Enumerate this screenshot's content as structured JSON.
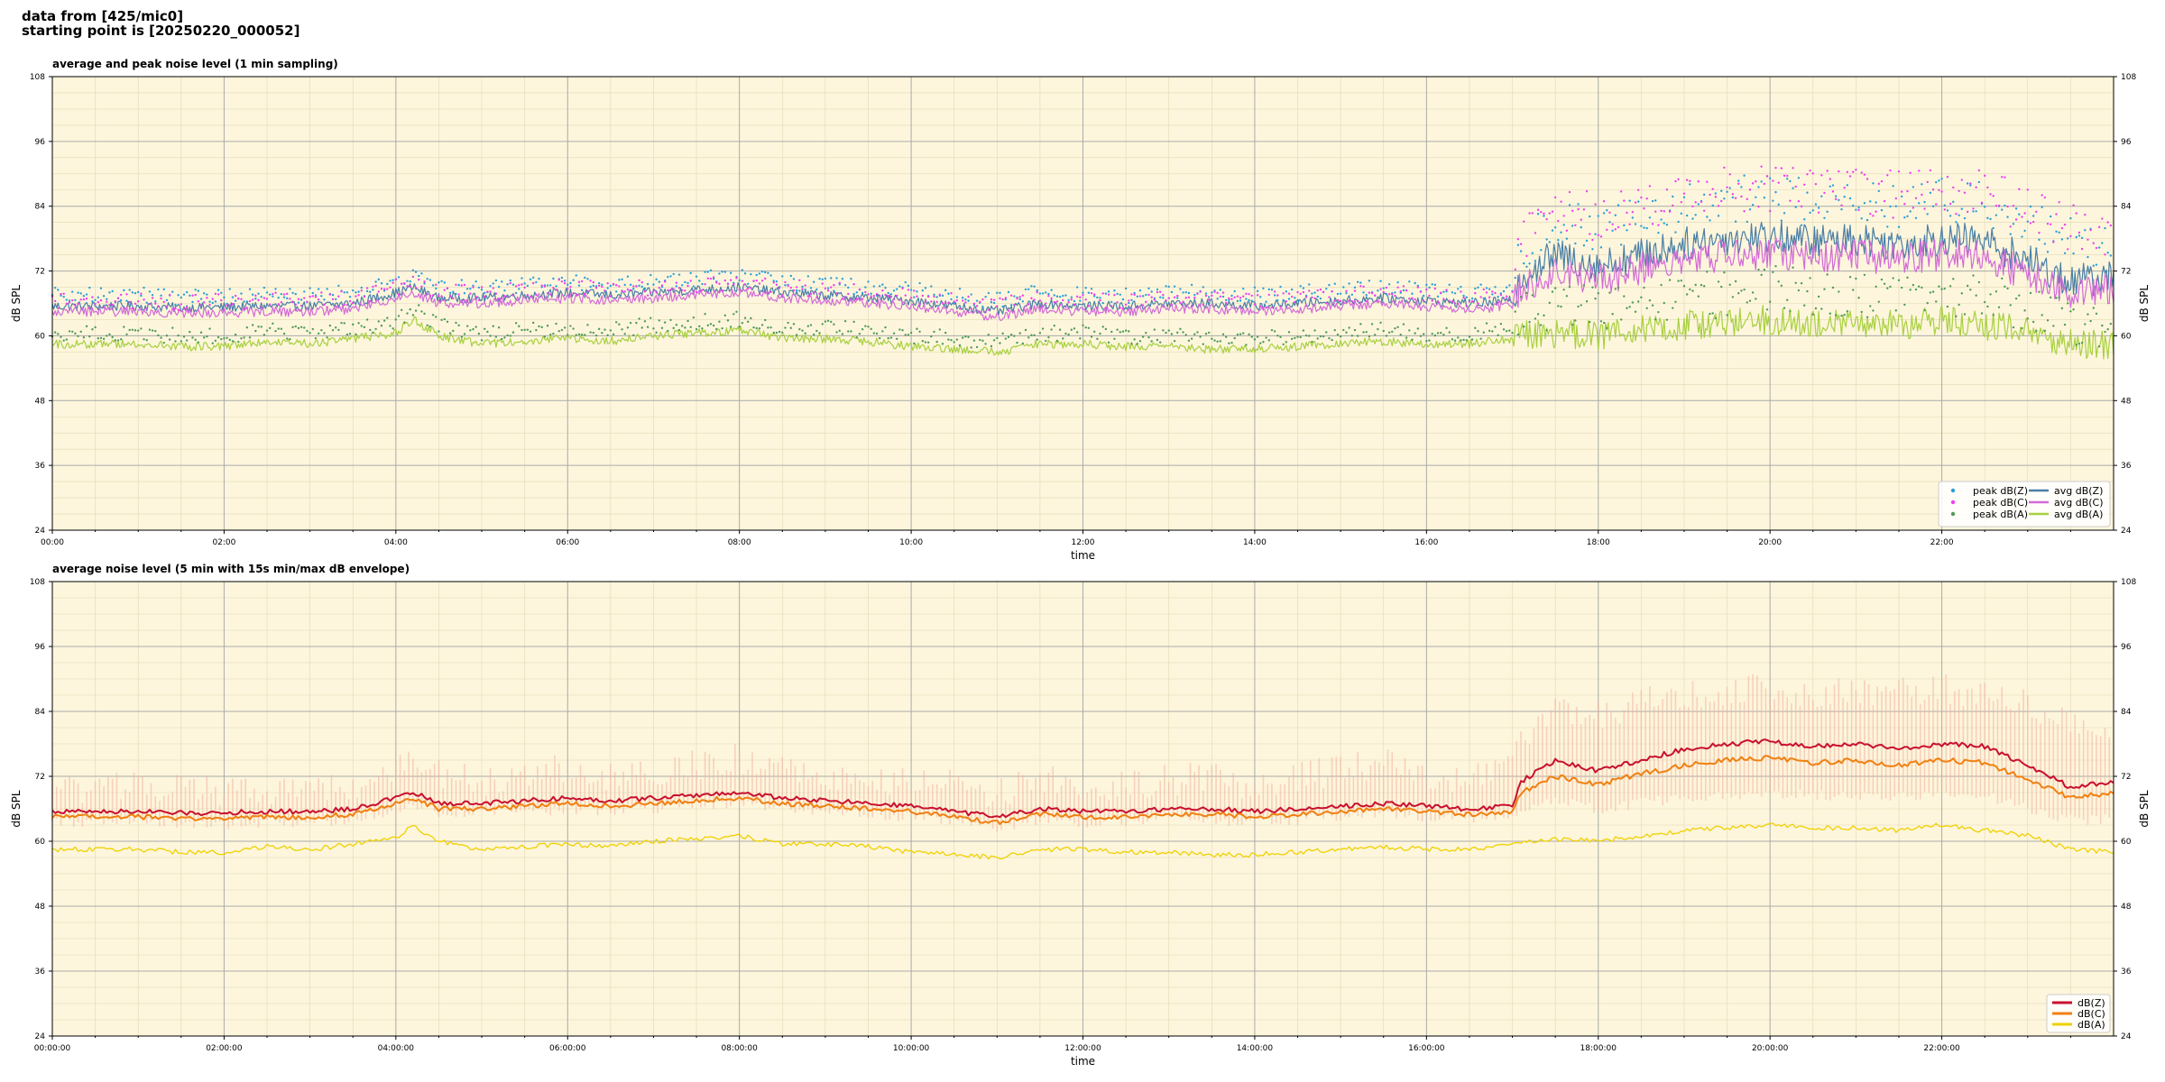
{
  "header": {
    "line1": "data from [425/mic0]",
    "line2": "starting point is [20250220_000052]"
  },
  "colors": {
    "background": "#fdf6dc",
    "grid_major": "#aaaaaa",
    "grid_minor": "#e2d8b4",
    "peak_z": "#2a9fd8",
    "peak_c": "#ee40ee",
    "peak_a": "#4f9a5a",
    "avg_z": "#4a7ea6",
    "avg_c": "#d36ad8",
    "avg_a": "#a8d040",
    "z": "#c8102e",
    "c": "#f08010",
    "a": "#f0d000",
    "envelope": "#f3b0a0"
  },
  "chart_data": [
    {
      "type": "line",
      "title": "average and peak noise level (1 min sampling)",
      "xlabel": "time",
      "ylabel": "dB SPL",
      "xlim": [
        0,
        24
      ],
      "ylim": [
        24,
        108
      ],
      "y_ticks": [
        24,
        36,
        48,
        60,
        72,
        84,
        96,
        108
      ],
      "x_tick_labels": [
        "00:00",
        "02:00",
        "04:00",
        "06:00",
        "08:00",
        "10:00",
        "12:00",
        "14:00",
        "16:00",
        "18:00",
        "20:00",
        "22:00"
      ],
      "grid": true,
      "legend_position": "bottom-right",
      "legend": [
        "peak dB(Z)",
        "peak dB(C)",
        "peak dB(A)",
        "avg dB(Z)",
        "avg dB(C)",
        "avg dB(A)"
      ],
      "x_hours": [
        0,
        0.5,
        1,
        1.5,
        2,
        2.5,
        3,
        3.5,
        4,
        4.2,
        4.5,
        5,
        5.5,
        6,
        6.5,
        7,
        7.5,
        8,
        8.5,
        9,
        9.5,
        10,
        10.5,
        11,
        11.5,
        12,
        12.5,
        13,
        13.5,
        14,
        14.5,
        15,
        15.5,
        16,
        16.5,
        17,
        17.1,
        17.5,
        18,
        18.5,
        19,
        19.5,
        20,
        20.5,
        21,
        21.5,
        22,
        22.5,
        23,
        23.5,
        24
      ],
      "series": [
        {
          "name": "avg dB(Z)",
          "values": [
            65.5,
            65.5,
            65.5,
            65.2,
            65.3,
            65.5,
            65.5,
            66,
            68,
            69,
            67,
            67,
            67.5,
            68,
            67.5,
            68,
            68.5,
            69,
            68,
            67.5,
            67,
            66.5,
            65.5,
            64.5,
            66,
            65.5,
            65.5,
            66,
            66,
            65.5,
            66,
            66.5,
            67,
            66.5,
            66,
            66.5,
            71,
            75,
            73,
            75,
            77,
            78,
            78.5,
            77.5,
            78,
            77,
            78,
            77.5,
            74,
            70,
            71
          ]
        },
        {
          "name": "avg dB(C)",
          "values": [
            64.5,
            64.5,
            64.5,
            64.2,
            64.3,
            64.5,
            64.5,
            65,
            67,
            68,
            66,
            66,
            66.5,
            67,
            66.5,
            67,
            67.5,
            68,
            67,
            66.5,
            66,
            65.5,
            64.5,
            63.5,
            65,
            64.5,
            64.5,
            65,
            65,
            64.5,
            65,
            65.5,
            66,
            65.5,
            65,
            65.5,
            69,
            72,
            70.5,
            72.5,
            74,
            75,
            75.5,
            74.5,
            75,
            74,
            75,
            74.5,
            71.5,
            68,
            69
          ]
        },
        {
          "name": "avg dB(A)",
          "values": [
            58.5,
            58.5,
            58.5,
            58,
            58,
            59,
            58.5,
            59.5,
            60.5,
            63,
            60,
            58.5,
            59,
            59.5,
            59,
            60,
            60.5,
            61,
            59.5,
            59.5,
            59,
            58,
            57.5,
            57,
            58.5,
            58.5,
            58,
            58,
            57.5,
            57.5,
            58,
            58.5,
            59,
            58.5,
            58.5,
            59.5,
            60,
            60.5,
            60,
            61,
            62,
            62.5,
            63,
            62.5,
            62.5,
            62,
            63,
            62,
            61,
            58.5,
            58
          ]
        },
        {
          "name": "peak dB(Z)",
          "values": [
            67.5,
            67.5,
            67.5,
            67.2,
            67.3,
            67.5,
            67.5,
            68,
            70,
            71,
            69,
            69,
            69.5,
            70,
            69.5,
            70,
            70.5,
            71,
            70,
            69.5,
            69,
            68.5,
            67.5,
            66.5,
            68,
            67.5,
            67.5,
            68,
            68,
            67.5,
            68,
            68.5,
            69,
            68.5,
            68,
            68.5,
            76,
            81,
            80,
            82,
            84,
            85,
            85.5,
            84.5,
            85,
            84,
            85,
            84.5,
            81,
            78,
            77
          ]
        },
        {
          "name": "peak dB(C)",
          "values": [
            66.5,
            66.5,
            66.5,
            66.2,
            66.3,
            66.5,
            66.5,
            67,
            69,
            70,
            68,
            68,
            68.5,
            69,
            68.5,
            69,
            69.5,
            70,
            69,
            68.5,
            68,
            67.5,
            66.5,
            65.5,
            67,
            66.5,
            66.5,
            67,
            67,
            66.5,
            67,
            67.5,
            68,
            67.5,
            67,
            67.5,
            78,
            83,
            82,
            84,
            86,
            87,
            87.5,
            86.5,
            87,
            86,
            87,
            86.5,
            83,
            80,
            79
          ]
        },
        {
          "name": "peak dB(A)",
          "values": [
            60.5,
            60.5,
            60.5,
            60,
            60,
            61,
            60.5,
            61.5,
            62.5,
            65,
            62,
            60.5,
            61,
            61.5,
            61,
            62,
            62.5,
            63,
            61.5,
            61.5,
            61,
            60,
            59.5,
            59,
            60.5,
            60.5,
            60,
            60,
            59.5,
            59.5,
            60,
            60.5,
            61,
            60.5,
            60.5,
            61.5,
            64,
            66,
            65,
            66,
            67,
            68,
            69,
            68,
            68,
            67,
            68,
            67,
            65,
            62,
            61
          ]
        }
      ]
    },
    {
      "type": "area",
      "title": "average noise level (5 min with 15s min/max dB envelope)",
      "xlabel": "time",
      "ylabel": "dB SPL",
      "xlim": [
        0,
        24
      ],
      "ylim": [
        24,
        108
      ],
      "y_ticks": [
        24,
        36,
        48,
        60,
        72,
        84,
        96,
        108
      ],
      "x_tick_labels": [
        "00:00:00",
        "02:00:00",
        "04:00:00",
        "06:00:00",
        "08:00:00",
        "10:00:00",
        "12:00:00",
        "14:00:00",
        "16:00:00",
        "18:00:00",
        "20:00:00",
        "22:00:00"
      ],
      "grid": true,
      "legend_position": "bottom-right",
      "legend": [
        "dB(Z)",
        "dB(C)",
        "dB(A)"
      ],
      "x_hours": [
        0,
        0.5,
        1,
        1.5,
        2,
        2.5,
        3,
        3.5,
        4,
        4.2,
        4.5,
        5,
        5.5,
        6,
        6.5,
        7,
        7.5,
        8,
        8.5,
        9,
        9.5,
        10,
        10.5,
        11,
        11.5,
        12,
        12.5,
        13,
        13.5,
        14,
        14.5,
        15,
        15.5,
        16,
        16.5,
        17,
        17.1,
        17.5,
        18,
        18.5,
        19,
        19.5,
        20,
        20.5,
        21,
        21.5,
        22,
        22.5,
        23,
        23.5,
        24
      ],
      "series": [
        {
          "name": "dB(Z)",
          "values": [
            65.5,
            65.5,
            65.5,
            65.2,
            65.3,
            65.5,
            65.5,
            66,
            68,
            69,
            67,
            67,
            67.5,
            68,
            67.5,
            68,
            68.5,
            69,
            68,
            67.5,
            67,
            66.5,
            65.5,
            64.5,
            66,
            65.5,
            65.5,
            66,
            66,
            65.5,
            66,
            66.5,
            67,
            66.5,
            66,
            66.5,
            71,
            75,
            73,
            75,
            77,
            78,
            78.5,
            77.5,
            78,
            77,
            78,
            77.5,
            74,
            70,
            71
          ]
        },
        {
          "name": "dB(C)",
          "values": [
            64.5,
            64.5,
            64.5,
            64.2,
            64.3,
            64.5,
            64.5,
            65,
            67,
            68,
            66,
            66,
            66.5,
            67,
            66.5,
            67,
            67.5,
            68,
            67,
            66.5,
            66,
            65.5,
            64.5,
            63.5,
            65,
            64.5,
            64.5,
            65,
            65,
            64.5,
            65,
            65.5,
            66,
            65.5,
            65,
            65.5,
            69,
            72,
            70.5,
            72.5,
            74,
            75,
            75.5,
            74.5,
            75,
            74,
            75,
            74.5,
            71.5,
            68,
            69
          ]
        },
        {
          "name": "dB(A)",
          "values": [
            58.5,
            58.5,
            58.5,
            58,
            58,
            59,
            58.5,
            59.5,
            60.5,
            63,
            60,
            58.5,
            59,
            59.5,
            59,
            60,
            60.5,
            61,
            59.5,
            59.5,
            59,
            58,
            57.5,
            57,
            58.5,
            58.5,
            58,
            58,
            57.5,
            57.5,
            58,
            58.5,
            59,
            58.5,
            58.5,
            59.5,
            60,
            60.5,
            60,
            61,
            62,
            62.5,
            63,
            62.5,
            62.5,
            62,
            63,
            62,
            61,
            58.5,
            58
          ]
        }
      ],
      "envelope_z": {
        "min": [
          63.5,
          63.5,
          63.5,
          63,
          63,
          63.5,
          63.5,
          64,
          65.5,
          66.5,
          65,
          65,
          65.5,
          66,
          65.5,
          66,
          66.5,
          67,
          66,
          65.5,
          65,
          64.5,
          63.5,
          62.5,
          64,
          63.5,
          63.5,
          64,
          64,
          63.5,
          64,
          64.5,
          65,
          64.5,
          64,
          64.5,
          66,
          68,
          66,
          67,
          68,
          68.5,
          69,
          68.5,
          68.5,
          68,
          69,
          68.5,
          66,
          64,
          64
        ],
        "max": [
          68,
          68,
          69,
          68,
          68,
          68,
          68,
          69,
          72,
          73,
          71,
          70,
          71,
          72,
          71,
          72,
          73,
          74,
          72,
          71,
          70,
          70,
          69,
          68,
          70,
          69,
          69,
          70,
          71,
          69,
          71,
          72,
          73,
          71,
          70,
          72,
          78,
          84,
          82,
          85,
          86,
          87,
          87,
          86,
          87,
          86,
          87,
          86,
          84,
          80,
          79
        ]
      }
    }
  ]
}
